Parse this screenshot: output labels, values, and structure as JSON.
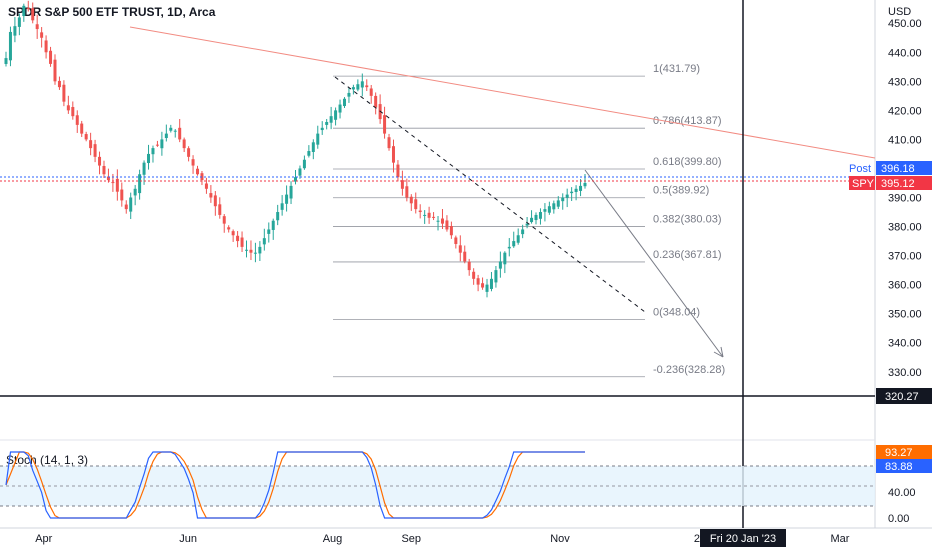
{
  "chart_data": {
    "type": "candlestick",
    "title": "SPDR S&P 500 ETF TRUST, 1D, Arca",
    "currency": "USD",
    "price_ticks": [
      450,
      440,
      430,
      420,
      410,
      400,
      390,
      380,
      370,
      360,
      350,
      340,
      330
    ],
    "price_tick_labels": [
      "450.00",
      "440.00",
      "430.00",
      "420.00",
      "410.00",
      "400.00",
      "390.00",
      "380.00",
      "370.00",
      "360.00",
      "350.00",
      "340.00",
      "330.00"
    ],
    "ylim": [
      322,
      458
    ],
    "x_labels": [
      {
        "label": "Apr",
        "x": 0.05
      },
      {
        "label": "Jun",
        "x": 0.215
      },
      {
        "label": "Aug",
        "x": 0.38
      },
      {
        "label": "Sep",
        "x": 0.47
      },
      {
        "label": "Nov",
        "x": 0.64
      },
      {
        "label": "20",
        "x": 0.8
      },
      {
        "label": "Mar",
        "x": 0.96
      }
    ],
    "closes": [
      438,
      447,
      449,
      452,
      456,
      455,
      451,
      448,
      445,
      440,
      436,
      430,
      428,
      423,
      420,
      418,
      415,
      412,
      410,
      407,
      404,
      401,
      398,
      396,
      395,
      392,
      389,
      386,
      390,
      393,
      398,
      402,
      405,
      407,
      408,
      410,
      412,
      414,
      413,
      410,
      407,
      404,
      401,
      398,
      396,
      393,
      390,
      387,
      384,
      381,
      379,
      377,
      375,
      373,
      372,
      371,
      371,
      373,
      376,
      379,
      382,
      385,
      388,
      391,
      394,
      397,
      400,
      403,
      406,
      409,
      412,
      414,
      416,
      418,
      420,
      422,
      424,
      426,
      428,
      429,
      430,
      428,
      425,
      421,
      417,
      412,
      407,
      402,
      397,
      393,
      390,
      388,
      386,
      385,
      384,
      383,
      383,
      382,
      381,
      379,
      377,
      374,
      371,
      368,
      365,
      362,
      360,
      359,
      360,
      362,
      365,
      368,
      371,
      373,
      375,
      377,
      379,
      381,
      383,
      384,
      385,
      386,
      387,
      388,
      389,
      390,
      391,
      392,
      393,
      394,
      395
    ],
    "fib_levels": [
      {
        "label": "1(431.79)",
        "price": 431.79
      },
      {
        "label": "0.786(413.87)",
        "price": 413.87
      },
      {
        "label": "0.618(399.80)",
        "price": 399.8
      },
      {
        "label": "0.5(389.92)",
        "price": 389.92
      },
      {
        "label": "0.382(380.03)",
        "price": 380.03
      },
      {
        "label": "0.236(367.81)",
        "price": 367.81
      },
      {
        "label": "0(348.04)",
        "price": 348.04
      },
      {
        "label": "-0.236(328.28)",
        "price": 328.28
      }
    ],
    "post_label": "Post",
    "post_price": "396.18",
    "spy_label": "SPY",
    "spy_price": "395.12",
    "crosshair_price": "320.27",
    "crosshair_date": "Fri 20 Jan '23",
    "stoch": {
      "title": "Stoch (14, 1, 3)",
      "ticks": [
        "40.00",
        "0.00"
      ],
      "upper_value": "93.27",
      "lower_value": "83.88",
      "k_color": "#2962ff",
      "d_color": "#ff6d00"
    },
    "colors": {
      "up": "#26a69a",
      "down": "#ef5350",
      "trendline": "#f28b82",
      "post_bg": "#2962ff",
      "spy_bg": "#f23645"
    }
  }
}
